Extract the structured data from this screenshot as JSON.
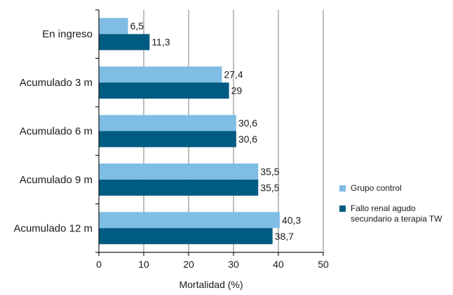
{
  "chart_data": {
    "type": "bar",
    "orientation": "horizontal",
    "categories": [
      "En ingreso",
      "Acumulado 3 m",
      "Acumulado 6 m",
      "Acumulado 9 m",
      "Acumulado 12 m"
    ],
    "series": [
      {
        "name": "Grupo control",
        "values": [
          6.5,
          27.4,
          30.6,
          35.5,
          40.3
        ],
        "labels": [
          "6,5",
          "27,4",
          "30,6",
          "35,5",
          "40,3"
        ],
        "color": "#7fbde4"
      },
      {
        "name": "Fallo renal agudo\nsecundario a terapia TW",
        "values": [
          11.3,
          29,
          30.6,
          35.5,
          38.7
        ],
        "labels": [
          "11,3",
          "29",
          "30,6",
          "35,5",
          "38,7"
        ],
        "color": "#005b82"
      }
    ],
    "xlabel": "Mortalidad (%)",
    "ylabel": "",
    "xlim": [
      0,
      50
    ],
    "xticks": [
      0,
      10,
      20,
      30,
      40,
      50
    ],
    "grid": "vertical",
    "gridline_color": "#9a9a9a",
    "legend_position": "right"
  }
}
